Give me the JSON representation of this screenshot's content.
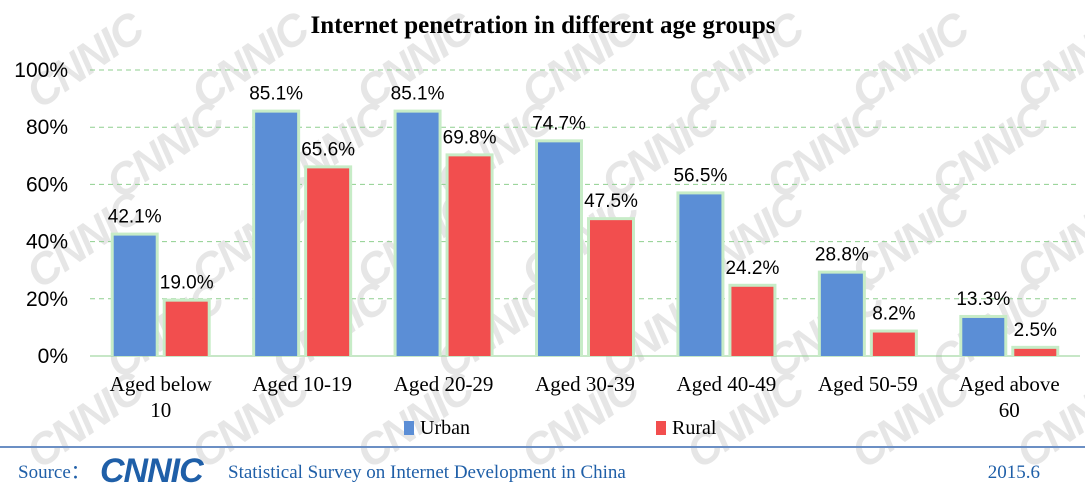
{
  "chart_data": {
    "type": "bar",
    "title": "Internet penetration in different age groups",
    "categories": [
      [
        "Aged below",
        "10"
      ],
      [
        "Aged 10-19"
      ],
      [
        "Aged 20-29"
      ],
      [
        "Aged 30-39"
      ],
      [
        "Aged 40-49"
      ],
      [
        "Aged 50-59"
      ],
      [
        "Aged above",
        "60"
      ]
    ],
    "series": [
      {
        "name": "Urban",
        "color": "#5b8ed6",
        "values": [
          42.1,
          85.1,
          85.1,
          74.7,
          56.5,
          28.8,
          13.3
        ],
        "labels": [
          "42.1%",
          "85.1%",
          "85.1%",
          "74.7%",
          "56.5%",
          "28.8%",
          "13.3%"
        ]
      },
      {
        "name": "Rural",
        "color": "#f24e4e",
        "values": [
          19.0,
          65.6,
          69.8,
          47.5,
          24.2,
          8.2,
          2.5
        ],
        "labels": [
          "19.0%",
          "65.6%",
          "69.8%",
          "47.5%",
          "24.2%",
          "8.2%",
          "2.5%"
        ]
      }
    ],
    "ylim": [
      0,
      100
    ],
    "yticks": [
      "0%",
      "20%",
      "40%",
      "60%",
      "80%",
      "100%"
    ],
    "grid": true,
    "legend": "bottom"
  },
  "footer": {
    "source_label": "Source：",
    "logo_text": "CNNIC",
    "survey": "Statistical Survey on Internet Development in China",
    "date": "2015.6"
  },
  "watermark": "CNNIC"
}
